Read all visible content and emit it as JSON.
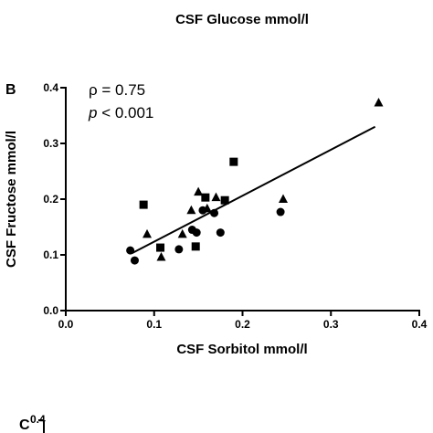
{
  "header": {
    "prev_panel_xlabel": "CSF Glucose mmol/l"
  },
  "panel_b": {
    "letter": "B"
  },
  "panel_c": {
    "letter": "C",
    "first_tick": "0.4"
  },
  "stats": {
    "rho_symbol": "ρ",
    "rho_text": " = 0.75",
    "p_symbol": "p",
    "p_text": " < 0.001"
  },
  "colors": {
    "marker": "#000000",
    "axis": "#000000",
    "background": "#ffffff"
  },
  "chart_data": {
    "type": "scatter",
    "xlabel": "CSF Sorbitol mmol/l",
    "ylabel": "CSF Fructose mmol/l",
    "xlim": [
      0.0,
      0.4
    ],
    "ylim": [
      0.0,
      0.4
    ],
    "xticks": [
      "0.0",
      "0.1",
      "0.2",
      "0.3",
      "0.4"
    ],
    "yticks": [
      "0.0",
      "0.1",
      "0.2",
      "0.3",
      "0.4"
    ],
    "grid": false,
    "series": [
      {
        "marker": "circle",
        "points": [
          [
            0.073,
            0.108
          ],
          [
            0.078,
            0.09
          ],
          [
            0.128,
            0.11
          ],
          [
            0.143,
            0.145
          ],
          [
            0.148,
            0.14
          ],
          [
            0.155,
            0.18
          ],
          [
            0.168,
            0.175
          ],
          [
            0.175,
            0.14
          ],
          [
            0.243,
            0.177
          ]
        ]
      },
      {
        "marker": "square",
        "points": [
          [
            0.088,
            0.19
          ],
          [
            0.107,
            0.113
          ],
          [
            0.147,
            0.115
          ],
          [
            0.158,
            0.203
          ],
          [
            0.18,
            0.198
          ],
          [
            0.19,
            0.267
          ]
        ]
      },
      {
        "marker": "triangle",
        "points": [
          [
            0.092,
            0.137
          ],
          [
            0.108,
            0.096
          ],
          [
            0.132,
            0.137
          ],
          [
            0.142,
            0.18
          ],
          [
            0.15,
            0.213
          ],
          [
            0.16,
            0.183
          ],
          [
            0.17,
            0.203
          ],
          [
            0.246,
            0.2
          ],
          [
            0.354,
            0.373
          ]
        ]
      }
    ],
    "regression": {
      "x": [
        0.075,
        0.35
      ],
      "y": [
        0.103,
        0.33
      ]
    }
  }
}
